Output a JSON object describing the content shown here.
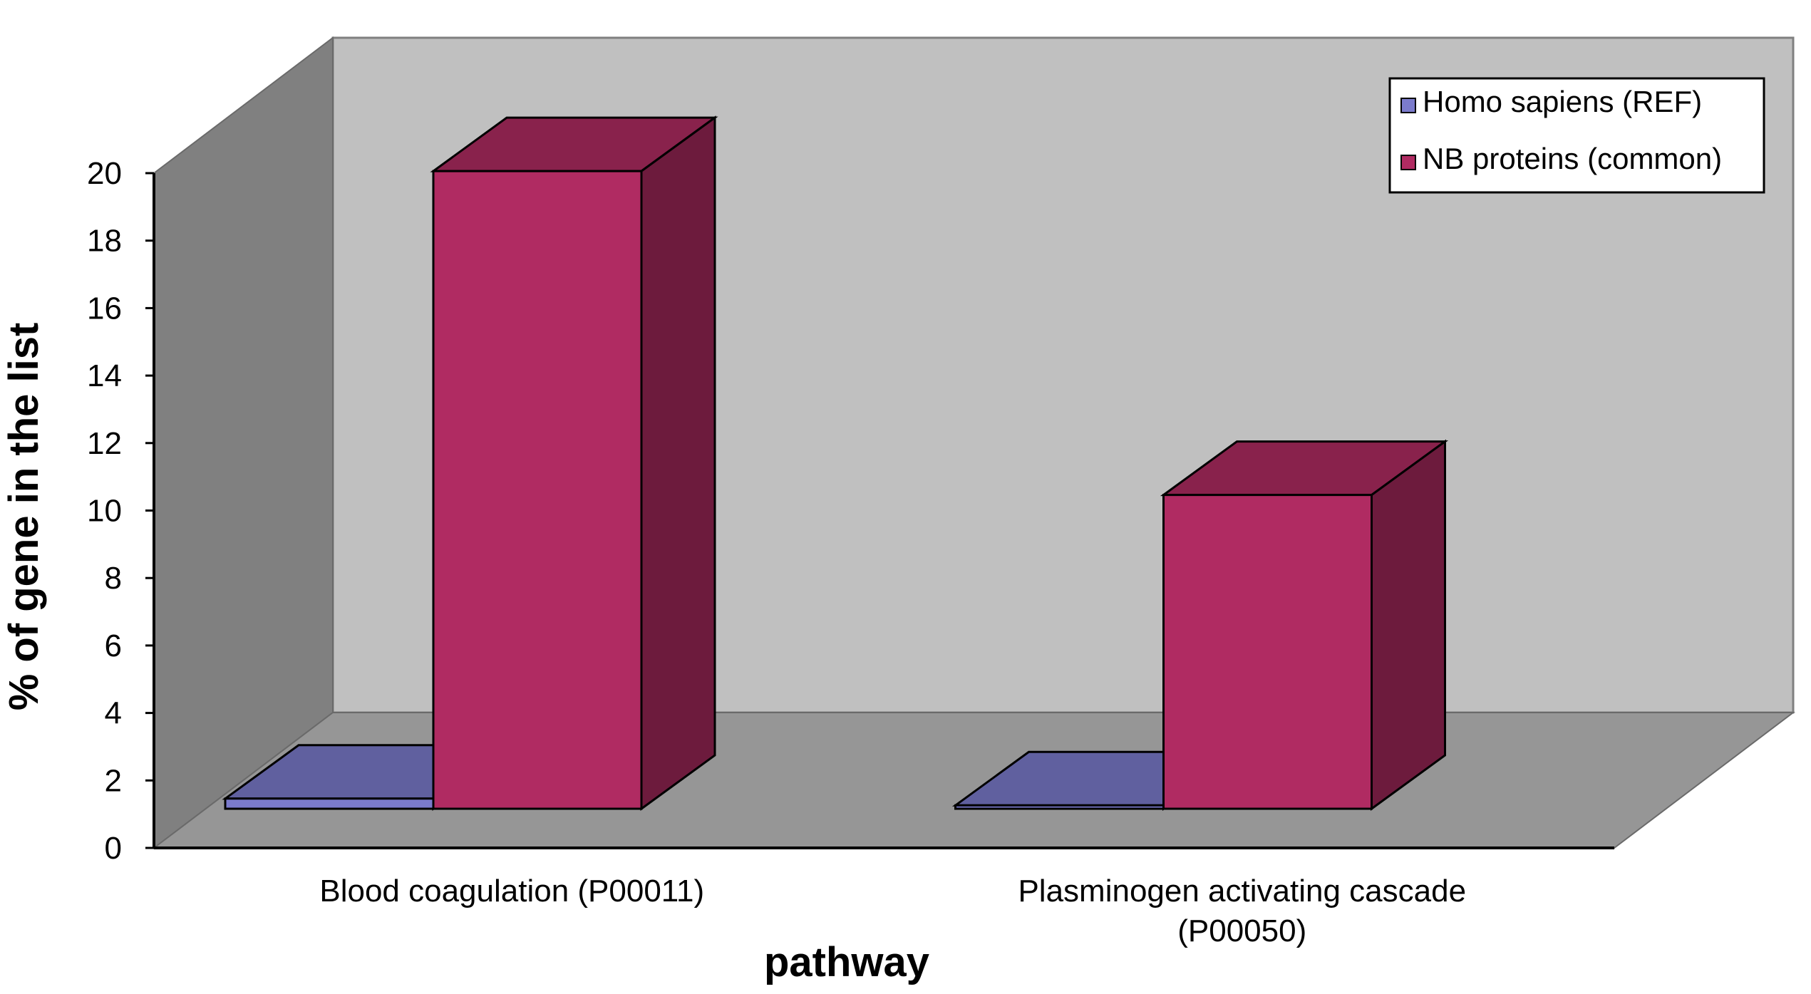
{
  "chart_data": {
    "type": "bar",
    "style": "3d-clustered-column",
    "title": "",
    "xlabel": "pathway",
    "ylabel": "% of gene in the list",
    "ylim": [
      0,
      20
    ],
    "yticks": [
      0,
      2,
      4,
      6,
      8,
      10,
      12,
      14,
      16,
      18,
      20
    ],
    "categories": [
      [
        "Blood coagulation (P00011)"
      ],
      [
        "Plasminogen activating cascade",
        "(P00050)"
      ]
    ],
    "series": [
      {
        "name": "Homo sapiens (REF)",
        "values": [
          0.3,
          0.1
        ],
        "color": "#7b7bcc"
      },
      {
        "name": "NB proteins (common)",
        "values": [
          18.9,
          9.3
        ],
        "color": "#b02b62"
      }
    ],
    "legend_position": "top-right",
    "grid": false,
    "colors": {
      "back_wall": "#c0c0c0",
      "side_wall": "#808080",
      "floor": "#969696"
    }
  }
}
